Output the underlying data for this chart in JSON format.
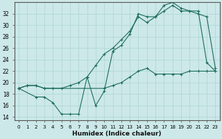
{
  "title": "",
  "xlabel": "Humidex (Indice chaleur)",
  "ylabel": "",
  "bg_color": "#cce8e8",
  "line_color": "#1a6b5a",
  "grid_color": "#add4d4",
  "ylim": [
    13.5,
    34.0
  ],
  "xlim": [
    -0.5,
    23.5
  ],
  "yticks": [
    14,
    16,
    18,
    20,
    22,
    24,
    26,
    28,
    30,
    32
  ],
  "xticks": [
    0,
    1,
    2,
    3,
    4,
    5,
    6,
    7,
    8,
    9,
    10,
    11,
    12,
    13,
    14,
    15,
    16,
    17,
    18,
    19,
    20,
    21,
    22,
    23
  ],
  "curve1_x": [
    0,
    1,
    2,
    3,
    10,
    11,
    12,
    13,
    14,
    15,
    16,
    17,
    18,
    19,
    20,
    21,
    22,
    23
  ],
  "curve1_y": [
    19.0,
    19.5,
    19.5,
    19.0,
    19.0,
    19.5,
    20.0,
    21.0,
    22.0,
    22.5,
    21.5,
    21.5,
    21.5,
    21.5,
    22.0,
    22.0,
    22.0,
    22.0
  ],
  "curve2_x": [
    0,
    1,
    2,
    3,
    4,
    5,
    6,
    7,
    8,
    9,
    10,
    11,
    12,
    13,
    14,
    15,
    16,
    17,
    18,
    19,
    20,
    21,
    22,
    23
  ],
  "curve2_y": [
    19.0,
    19.5,
    19.5,
    19.0,
    19.0,
    19.0,
    19.5,
    20.0,
    21.0,
    23.0,
    25.0,
    26.0,
    27.5,
    29.0,
    31.5,
    30.5,
    31.5,
    32.5,
    33.5,
    32.5,
    32.5,
    32.0,
    31.5,
    22.5
  ],
  "curve3_x": [
    0,
    2,
    3,
    4,
    5,
    6,
    7,
    8,
    9,
    10,
    11,
    12,
    13,
    14,
    15,
    16,
    17,
    18,
    19,
    20,
    21,
    22,
    23
  ],
  "curve3_y": [
    19.0,
    17.5,
    17.5,
    16.5,
    14.5,
    14.5,
    14.5,
    21.0,
    16.0,
    18.5,
    25.5,
    26.5,
    28.5,
    32.0,
    31.5,
    31.5,
    33.5,
    34.0,
    33.0,
    32.5,
    32.5,
    23.5,
    22.0
  ]
}
